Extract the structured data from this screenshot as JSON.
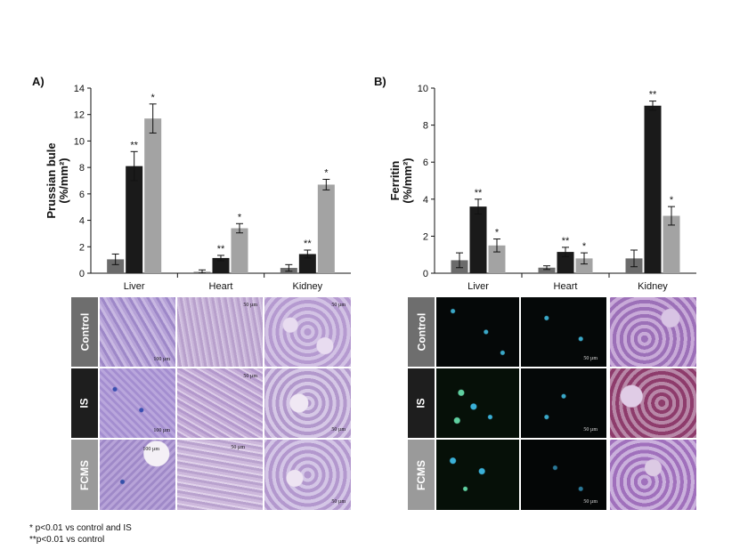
{
  "panels": {
    "a_label": "A)",
    "b_label": "B)"
  },
  "chart_data": [
    {
      "type": "bar",
      "panel": "A)",
      "title": "",
      "ylabel": "Prussian bule",
      "yunit": "(%/mm²)",
      "ylim": [
        0,
        14
      ],
      "yticks": [
        0,
        2,
        4,
        6,
        8,
        10,
        12,
        14
      ],
      "categories": [
        "Liver",
        "Heart",
        "Kidney"
      ],
      "series": [
        {
          "values": [
            1.05,
            0.1,
            0.4
          ],
          "errors": [
            0.4,
            0.15,
            0.25
          ],
          "color": "#6b6b6b"
        },
        {
          "values": [
            8.1,
            1.15,
            1.45
          ],
          "errors": [
            1.1,
            0.2,
            0.3
          ],
          "color": "#1a1a1a"
        },
        {
          "values": [
            11.7,
            3.4,
            6.7
          ],
          "errors": [
            1.1,
            0.35,
            0.4
          ],
          "color": "#a3a3a3"
        }
      ],
      "significance": [
        [
          "",
          "**",
          "*"
        ],
        [
          "",
          "**",
          "*"
        ],
        [
          "",
          "**",
          "*"
        ]
      ]
    },
    {
      "type": "bar",
      "panel": "B)",
      "title": "",
      "ylabel": "Ferritin",
      "yunit": "(%/mm²)",
      "ylim": [
        0,
        10
      ],
      "yticks": [
        0,
        2,
        4,
        6,
        8,
        10
      ],
      "categories": [
        "Liver",
        "Heart",
        "Kidney"
      ],
      "series": [
        {
          "values": [
            0.7,
            0.3,
            0.8
          ],
          "errors": [
            0.4,
            0.1,
            0.45
          ],
          "color": "#6b6b6b"
        },
        {
          "values": [
            3.6,
            1.15,
            9.05
          ],
          "errors": [
            0.4,
            0.25,
            0.25
          ],
          "color": "#1a1a1a"
        },
        {
          "values": [
            1.5,
            0.8,
            3.1
          ],
          "errors": [
            0.35,
            0.3,
            0.5
          ],
          "color": "#a3a3a3"
        }
      ],
      "significance": [
        [
          "",
          "**",
          "*"
        ],
        [
          "",
          "**",
          "*"
        ],
        [
          "",
          "**",
          "*"
        ]
      ]
    }
  ],
  "micrographs": {
    "row_labels": [
      "Control",
      "IS",
      "FCMS"
    ],
    "left_scale_bars": [
      [
        "100 µm",
        "50 µm",
        "50 µm"
      ],
      [
        "100 µm",
        "50 µm",
        "50 µm"
      ],
      [
        "100 µm",
        "50 µm",
        "50 µm"
      ]
    ],
    "right_scale_bars": [
      "50 µm",
      "50 µm",
      "50 µm"
    ]
  },
  "footnotes": {
    "line1": "* p<0.01 vs control and IS",
    "line2": "**p<0.01 vs control"
  },
  "colors": {
    "control": "#6b6b6b",
    "is": "#1a1a1a",
    "fcms": "#a3a3a3",
    "row_label_control": "#6e6e6e",
    "row_label_is": "#1e1e1e",
    "row_label_fcms": "#9a9a9a"
  }
}
